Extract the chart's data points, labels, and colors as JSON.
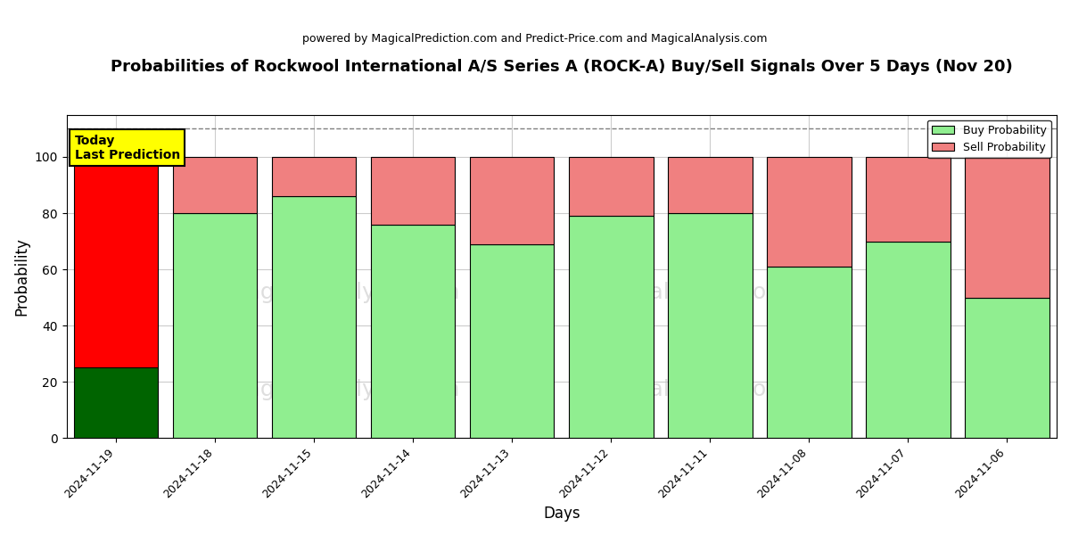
{
  "title": "Probabilities of Rockwool International A/S Series A (ROCK-A) Buy/Sell Signals Over 5 Days (Nov 20)",
  "subtitle": "powered by MagicalPrediction.com and Predict-Price.com and MagicalAnalysis.com",
  "xlabel": "Days",
  "ylabel": "Probability",
  "dates": [
    "2024-11-19",
    "2024-11-18",
    "2024-11-15",
    "2024-11-14",
    "2024-11-13",
    "2024-11-12",
    "2024-11-11",
    "2024-11-08",
    "2024-11-07",
    "2024-11-06"
  ],
  "buy_values": [
    25,
    80,
    86,
    76,
    69,
    79,
    80,
    61,
    70,
    50
  ],
  "sell_values": [
    75,
    20,
    14,
    24,
    31,
    21,
    20,
    39,
    30,
    50
  ],
  "buy_color_light": "#90EE90",
  "buy_color_dark": "#006400",
  "sell_color_today": "#FF0000",
  "sell_color_rest": "#F08080",
  "bar_edge_color": "#000000",
  "grid_color": "#CCCCCC",
  "dashed_line_y": 110,
  "ylim": [
    0,
    115
  ],
  "yticks": [
    0,
    20,
    40,
    60,
    80,
    100
  ],
  "annotation_box_color": "#FFFF00",
  "annotation_text": "Today\nLast Prediction",
  "legend_buy_label": "Buy Probability",
  "legend_sell_label": "Sell Probability",
  "bar_width": 0.85,
  "figsize": [
    12,
    6
  ],
  "dpi": 100
}
